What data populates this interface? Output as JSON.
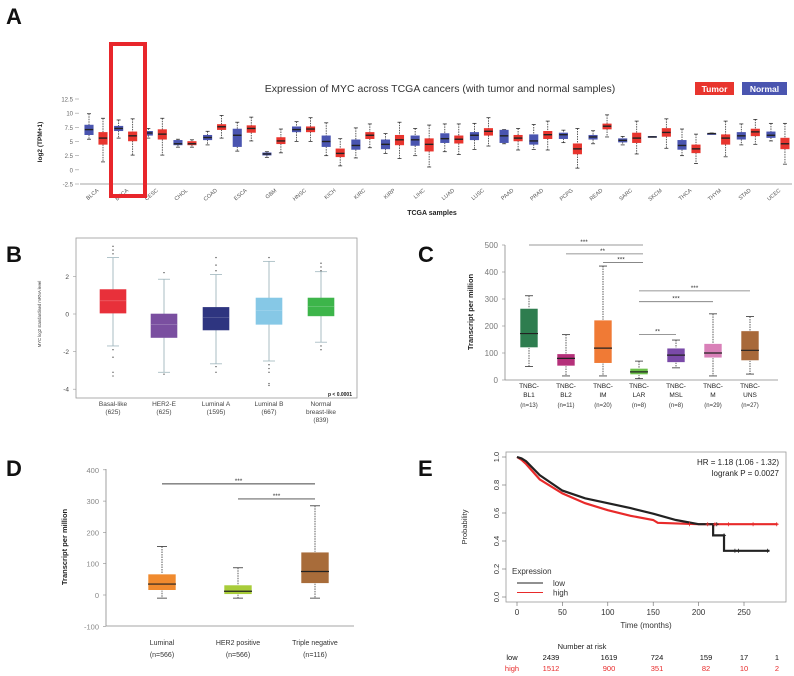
{
  "panel_letters": [
    "A",
    "B",
    "C",
    "D",
    "E"
  ],
  "chart_data": [
    {
      "panel": "A",
      "type": "box",
      "title": "Expression of MYC across TCGA cancers (with tumor and normal samples)",
      "xlabel": "TCGA samples",
      "ylabel": "log2 (TPM+1)",
      "ylim": [
        -2.5,
        12.5
      ],
      "yticks": [
        "12.5",
        "10",
        "7.5",
        "5",
        "2.5",
        "0",
        "-2.5"
      ],
      "ytick_values": [
        12.5,
        10,
        7.5,
        5,
        2.5,
        0,
        -2.5
      ],
      "legend": [
        "Tumor",
        "Normal"
      ],
      "legend_placement": "top-right",
      "highlighted_category": "BRCA",
      "categories": [
        "BLCA",
        "BRCA",
        "CESC",
        "CHOL",
        "COAD",
        "ESCA",
        "GBM",
        "HNSC",
        "KICH",
        "KIRC",
        "KIRP",
        "LIHC",
        "LUAD",
        "LUSC",
        "PAAD",
        "PRAD",
        "PCPG",
        "READ",
        "SARC",
        "SKCM",
        "THCA",
        "THYM",
        "STAD",
        "UCEC"
      ],
      "series": [
        {
          "name": "Normal",
          "color": "#4a55b0",
          "stats_order": "min,q1,median,q3,max",
          "boxes": [
            [
              5.4,
              6.2,
              7.1,
              7.9,
              9.9
            ],
            [
              5.6,
              6.9,
              7.3,
              7.7,
              8.8
            ],
            [
              5.6,
              6.1,
              6.5,
              6.8,
              7.3
            ],
            [
              4.0,
              4.4,
              4.6,
              5.2,
              5.4
            ],
            [
              4.4,
              5.3,
              5.7,
              6.1,
              6.8
            ],
            [
              3.3,
              4.1,
              6.1,
              7.2,
              8.4
            ],
            [
              2.2,
              2.6,
              2.8,
              3.0,
              3.2
            ],
            [
              5.0,
              6.7,
              7.1,
              7.6,
              8.5
            ],
            [
              2.5,
              4.1,
              5.0,
              6.0,
              8.3
            ],
            [
              2.1,
              3.6,
              4.3,
              5.3,
              7.4
            ],
            [
              2.9,
              3.7,
              4.5,
              5.3,
              6.4
            ],
            [
              2.5,
              4.3,
              5.3,
              6.0,
              7.3
            ],
            [
              3.2,
              4.8,
              5.5,
              6.4,
              8.1
            ],
            [
              3.6,
              5.3,
              6.1,
              6.6,
              8.2
            ],
            [
              4.6,
              4.8,
              6.0,
              7.0,
              7.1
            ],
            [
              3.6,
              4.5,
              5.1,
              6.2,
              8.0
            ],
            [
              4.8,
              5.5,
              6.2,
              6.5,
              7.0
            ],
            [
              4.6,
              5.4,
              5.8,
              6.1,
              6.9
            ],
            [
              4.4,
              4.9,
              5.2,
              5.5,
              5.9
            ],
            [
              5.8,
              5.8,
              5.8,
              5.9,
              5.9
            ],
            [
              2.5,
              3.6,
              4.3,
              5.2,
              7.2
            ],
            [
              6.3,
              6.3,
              6.4,
              6.4,
              6.5
            ],
            [
              4.4,
              5.4,
              6.0,
              6.6,
              8.1
            ],
            [
              5.1,
              5.7,
              6.1,
              6.7,
              8.2
            ]
          ]
        },
        {
          "name": "Tumor",
          "color": "#e8352e",
          "stats_order": "min,q1,median,q3,max",
          "boxes": [
            [
              1.4,
              4.5,
              5.6,
              6.6,
              9.1
            ],
            [
              2.6,
              5.1,
              6.0,
              6.7,
              9.0
            ],
            [
              2.6,
              5.4,
              6.3,
              7.1,
              9.1
            ],
            [
              4.0,
              4.4,
              4.6,
              5.0,
              5.3
            ],
            [
              5.6,
              7.1,
              7.6,
              8.0,
              9.6
            ],
            [
              5.1,
              6.6,
              7.3,
              7.8,
              9.3
            ],
            [
              3.0,
              4.6,
              5.1,
              5.7,
              7.2
            ],
            [
              5.0,
              6.7,
              7.2,
              7.6,
              9.2
            ],
            [
              0.7,
              2.3,
              2.9,
              3.7,
              5.5
            ],
            [
              3.9,
              5.5,
              6.1,
              6.6,
              8.1
            ],
            [
              2.0,
              4.4,
              5.3,
              6.1,
              8.4
            ],
            [
              0.5,
              3.3,
              4.5,
              5.5,
              7.9
            ],
            [
              2.7,
              4.7,
              5.4,
              6.0,
              8.1
            ],
            [
              4.2,
              6.1,
              6.8,
              7.3,
              9.2
            ],
            [
              3.5,
              5.1,
              5.6,
              6.1,
              7.3
            ],
            [
              3.5,
              5.5,
              6.2,
              6.8,
              8.6
            ],
            [
              0.3,
              2.8,
              3.7,
              4.6,
              7.3
            ],
            [
              5.8,
              7.2,
              7.7,
              8.1,
              9.7
            ],
            [
              2.8,
              4.8,
              5.6,
              6.5,
              8.6
            ],
            [
              3.8,
              5.9,
              6.6,
              7.3,
              9.0
            ],
            [
              1.1,
              3.0,
              3.7,
              4.4,
              6.3
            ],
            [
              2.3,
              4.5,
              5.6,
              6.2,
              8.6
            ],
            [
              4.5,
              6.0,
              6.7,
              7.2,
              8.9
            ],
            [
              1.0,
              3.7,
              4.6,
              5.6,
              8.2
            ]
          ]
        }
      ]
    },
    {
      "panel": "B",
      "type": "box",
      "ylabel": "MYC log2 standardised mRNA level",
      "ylim": [
        -4.5,
        3.9
      ],
      "yticks": [
        "2",
        "0",
        "-2",
        "-4"
      ],
      "ytick_values": [
        2,
        0,
        -2,
        -4
      ],
      "annotation": "p < 0.0001",
      "categories": [
        {
          "name": "Basal-like",
          "n": "(625)",
          "color": "#e8303a",
          "box": [
            -1.7,
            0.05,
            0.7,
            1.3,
            3.0
          ],
          "outliers": [
            3.2,
            3.4,
            3.6,
            -1.9,
            -2.3,
            -3.1,
            -3.3
          ]
        },
        {
          "name": "HER2-E",
          "n": "(625)",
          "color": "#7a4fa0",
          "box": [
            -3.1,
            -1.25,
            -0.55,
            0.0,
            1.85
          ],
          "outliers": [
            2.2,
            -3.2
          ]
        },
        {
          "name": "Luminal A",
          "n": "(1595)",
          "color": "#2e3580",
          "box": [
            -2.65,
            -0.85,
            -0.2,
            0.35,
            2.1
          ],
          "outliers": [
            2.3,
            2.6,
            3.0,
            -2.8,
            -3.1
          ]
        },
        {
          "name": "Luminal B",
          "n": "(667)",
          "color": "#86c8e6",
          "box": [
            -2.5,
            -0.55,
            0.2,
            0.85,
            2.8
          ],
          "outliers": [
            3.0,
            -2.7,
            -2.9,
            -3.1,
            -3.7,
            -3.8
          ]
        },
        {
          "name": "Normal",
          "name2": "breast-like",
          "n": "(839)",
          "color": "#3db54a",
          "box": [
            -1.5,
            -0.1,
            0.4,
            0.85,
            2.25
          ],
          "outliers": [
            2.3,
            2.5,
            2.7,
            -1.7,
            -1.9
          ]
        }
      ]
    },
    {
      "panel": "C",
      "type": "box",
      "ylabel": "Transcript per million",
      "ylim": [
        0,
        500
      ],
      "yticks": [
        "500",
        "400",
        "300",
        "200",
        "100",
        "0"
      ],
      "ytick_values": [
        500,
        400,
        300,
        200,
        100,
        0
      ],
      "categories": [
        {
          "l1": "TNBC-",
          "l2": "BL1",
          "n": "(n=13)",
          "color": "#2e7d4f",
          "box": [
            50,
            120,
            172,
            265,
            312
          ]
        },
        {
          "l1": "TNBC-",
          "l2": "BL2",
          "n": "(n=11)",
          "color": "#b5307a",
          "box": [
            15,
            52,
            80,
            97,
            168
          ]
        },
        {
          "l1": "TNBC-",
          "l2": "IM",
          "n": "(n=20)",
          "color": "#f07a35",
          "box": [
            15,
            62,
            118,
            222,
            422
          ]
        },
        {
          "l1": "TNBC-",
          "l2": "LAR",
          "n": "(n=8)",
          "color": "#6cc04a",
          "box": [
            5,
            20,
            30,
            43,
            70
          ]
        },
        {
          "l1": "TNBC-",
          "l2": "MSL",
          "n": "(n=8)",
          "color": "#7a4aa8",
          "box": [
            45,
            65,
            92,
            118,
            148
          ]
        },
        {
          "l1": "TNBC-",
          "l2": "M",
          "n": "(n=29)",
          "color": "#d980b8",
          "box": [
            15,
            82,
            100,
            135,
            245
          ]
        },
        {
          "l1": "TNBC-",
          "l2": "UNS",
          "n": "(n=27)",
          "color": "#a8693a",
          "box": [
            22,
            72,
            110,
            182,
            235
          ]
        }
      ],
      "significance": [
        {
          "from": 0,
          "to": 3,
          "level": 500,
          "label": "***"
        },
        {
          "from": 1,
          "to": 3,
          "level": 467,
          "label": "**"
        },
        {
          "from": 2,
          "to": 3,
          "level": 435,
          "label": "***"
        },
        {
          "from": 3,
          "to": 6,
          "level": 330,
          "label": "***"
        },
        {
          "from": 3,
          "to": 5,
          "level": 290,
          "label": "***"
        },
        {
          "from": 3,
          "to": 4,
          "level": 168,
          "label": "**"
        }
      ]
    },
    {
      "panel": "D",
      "type": "box",
      "ylabel": "Transcript per million",
      "ylim": [
        -100,
        400
      ],
      "yticks": [
        "400",
        "300",
        "200",
        "100",
        "0",
        "-100"
      ],
      "ytick_values": [
        400,
        300,
        200,
        100,
        0,
        -100
      ],
      "categories": [
        {
          "name": "Luminal",
          "n": "(n=566)",
          "color": "#f08a2e",
          "box": [
            -10,
            15,
            35,
            67,
            155
          ]
        },
        {
          "name": "HER2 positive",
          "n": "(n=566)",
          "color": "#a8cc3a",
          "box": [
            -10,
            2,
            12,
            32,
            87
          ]
        },
        {
          "name": "Triple negative",
          "n": "(n=116)",
          "color": "#a86c3a",
          "box": [
            -10,
            37,
            75,
            137,
            285
          ]
        }
      ],
      "significance": [
        {
          "from": 0,
          "to": 2,
          "level": 355,
          "label": "***"
        },
        {
          "from": 1,
          "to": 2,
          "level": 307,
          "label": "***"
        }
      ]
    },
    {
      "panel": "E",
      "type": "line",
      "xlabel": "Time (months)",
      "ylabel": "Probability",
      "xlim": [
        0,
        290
      ],
      "ylim": [
        0,
        1
      ],
      "xticks": [
        "0",
        "50",
        "100",
        "150",
        "200",
        "250"
      ],
      "xtick_values": [
        0,
        50,
        100,
        150,
        200,
        250
      ],
      "yticks": [
        "0.0",
        "0.2",
        "0.4",
        "0.6",
        "0.8",
        "1.0"
      ],
      "ytick_values": [
        0,
        0.2,
        0.4,
        0.6,
        0.8,
        1.0
      ],
      "hr_text": "HR = 1.18 (1.06 - 1.32)",
      "logrank_text": "logrank P = 0.0027",
      "legend_title": "Expression",
      "legend_placement": "bottom-left",
      "series": [
        {
          "name": "low",
          "color": "#222222",
          "points": [
            [
              0,
              1
            ],
            [
              5,
              0.99
            ],
            [
              10,
              0.97
            ],
            [
              25,
              0.87
            ],
            [
              50,
              0.76
            ],
            [
              75,
              0.705
            ],
            [
              100,
              0.67
            ],
            [
              125,
              0.635
            ],
            [
              150,
              0.595
            ],
            [
              175,
              0.55
            ],
            [
              200,
              0.52
            ],
            [
              216,
              0.52
            ],
            [
              216,
              0.44
            ],
            [
              228,
              0.44
            ],
            [
              228,
              0.33
            ],
            [
              278,
              0.33
            ]
          ]
        },
        {
          "name": "high",
          "color": "#e82a2a",
          "points": [
            [
              0,
              1
            ],
            [
              5,
              0.98
            ],
            [
              10,
              0.95
            ],
            [
              25,
              0.84
            ],
            [
              50,
              0.74
            ],
            [
              75,
              0.67
            ],
            [
              100,
              0.62
            ],
            [
              125,
              0.58
            ],
            [
              150,
              0.55
            ],
            [
              155,
              0.53
            ],
            [
              200,
              0.52
            ],
            [
              287,
              0.52
            ]
          ]
        }
      ],
      "risk_table": {
        "title": "Number at risk",
        "rows": [
          {
            "label": "low",
            "color": "#111111",
            "values": [
              "2439",
              "1619",
              "724",
              "159",
              "17",
              "1"
            ]
          },
          {
            "label": "high",
            "color": "#e82a2a",
            "values": [
              "1512",
              "900",
              "351",
              "82",
              "10",
              "2"
            ]
          }
        ]
      }
    }
  ]
}
